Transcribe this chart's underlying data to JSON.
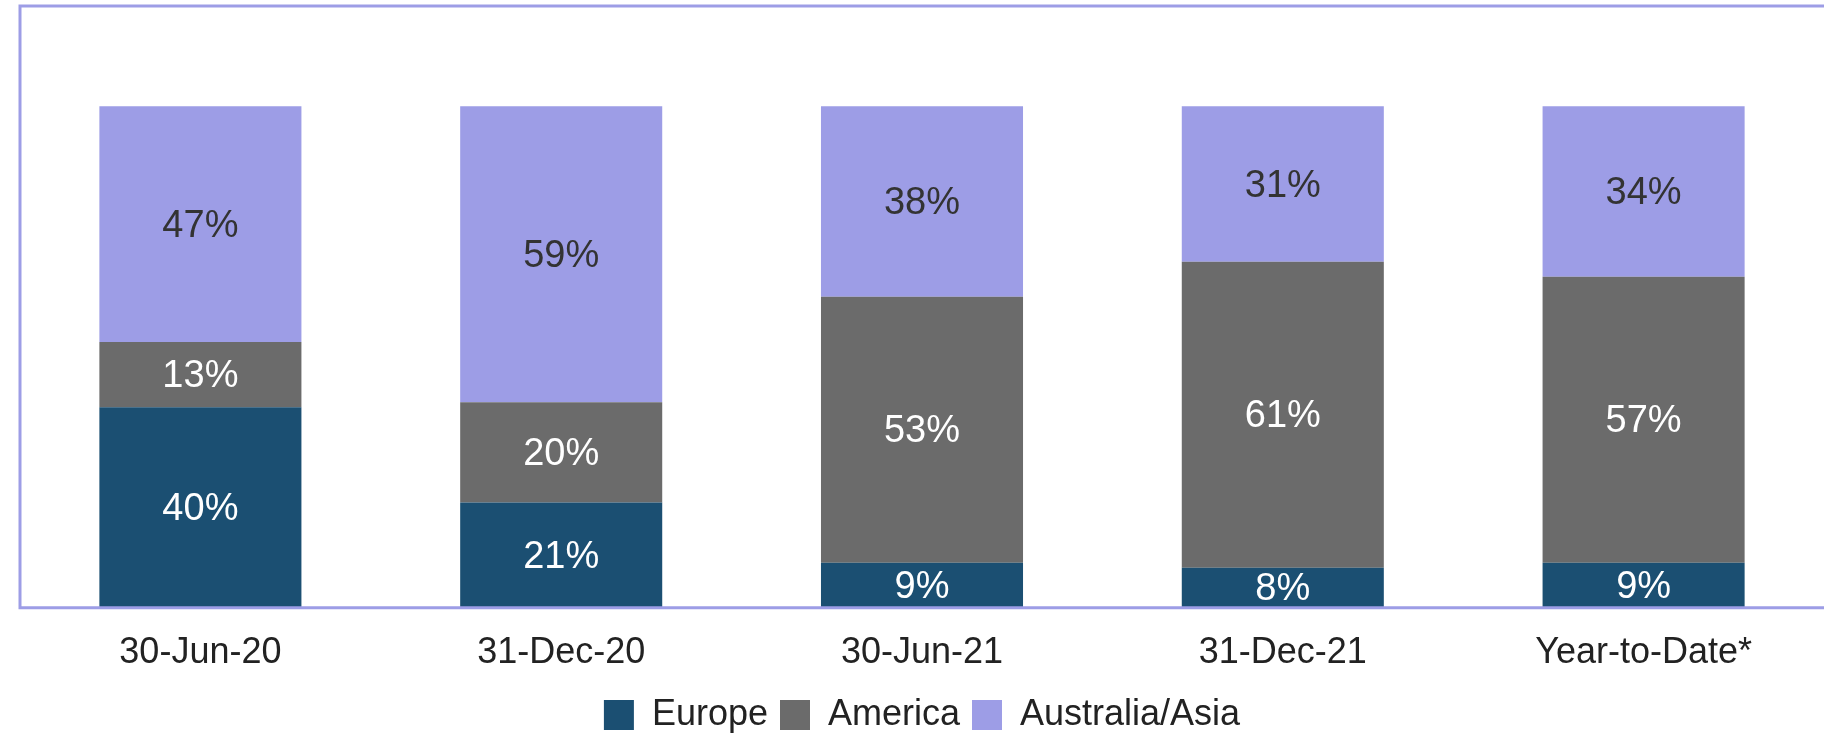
{
  "chart_data": {
    "type": "bar",
    "stacked": true,
    "legend": "bottom",
    "categories": [
      "30-Jun-20",
      "31-Dec-20",
      "30-Jun-21",
      "31-Dec-21",
      "Year-to-Date*"
    ],
    "series": [
      {
        "name": "Europe",
        "color": "#1b4f72",
        "values": [
          40,
          21,
          9,
          8,
          9
        ],
        "value_labels": [
          "40%",
          "21%",
          "9%",
          "8%",
          "9%"
        ]
      },
      {
        "name": "America",
        "color": "#6b6b6b",
        "values": [
          13,
          20,
          53,
          61,
          57
        ],
        "value_labels": [
          "13%",
          "20%",
          "53%",
          "61%",
          "57%"
        ]
      },
      {
        "name": "Australia/Asia",
        "color": "#9d9de6",
        "values": [
          47,
          59,
          38,
          31,
          34
        ],
        "value_labels": [
          "47%",
          "59%",
          "38%",
          "31%",
          "34%"
        ]
      }
    ]
  }
}
